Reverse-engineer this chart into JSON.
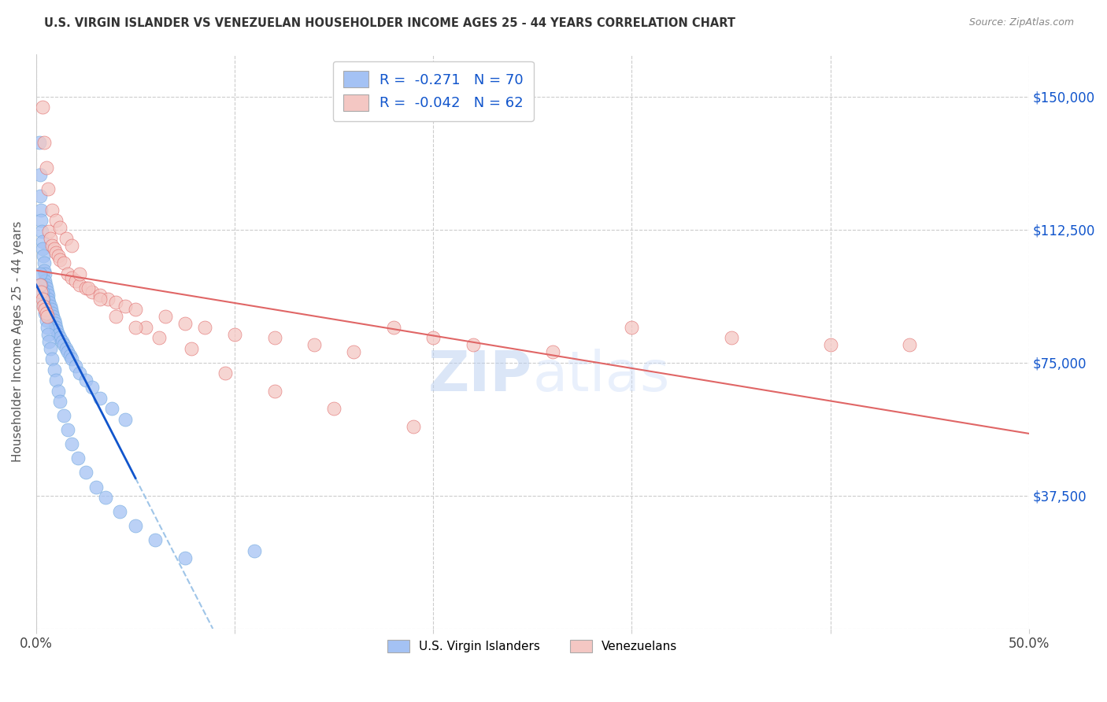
{
  "title": "U.S. VIRGIN ISLANDER VS VENEZUELAN HOUSEHOLDER INCOME AGES 25 - 44 YEARS CORRELATION CHART",
  "source": "Source: ZipAtlas.com",
  "ylabel": "Householder Income Ages 25 - 44 years",
  "x_ticks": [
    0.0,
    10.0,
    20.0,
    30.0,
    40.0,
    50.0
  ],
  "y_ticks": [
    0,
    37500,
    75000,
    112500,
    150000
  ],
  "y_tick_labels": [
    "",
    "$37,500",
    "$75,000",
    "$112,500",
    "$150,000"
  ],
  "xlim": [
    0.0,
    50.0
  ],
  "ylim": [
    0,
    162000
  ],
  "legend_labels": [
    "U.S. Virgin Islanders",
    "Venezuelans"
  ],
  "legend_r": [
    -0.271,
    -0.042
  ],
  "legend_n": [
    70,
    62
  ],
  "blue_color": "#a4c2f4",
  "pink_color": "#f4c7c3",
  "blue_edge_color": "#6fa8dc",
  "pink_edge_color": "#e06666",
  "blue_line_color": "#1155cc",
  "pink_line_color": "#e06666",
  "dashed_line_color": "#9fc5e8",
  "watermark_color": "#c9daf8",
  "blue_dots_x": [
    0.15,
    0.18,
    0.2,
    0.22,
    0.25,
    0.28,
    0.3,
    0.32,
    0.35,
    0.38,
    0.4,
    0.42,
    0.45,
    0.48,
    0.5,
    0.55,
    0.58,
    0.6,
    0.65,
    0.7,
    0.75,
    0.8,
    0.85,
    0.9,
    0.95,
    1.0,
    1.05,
    1.1,
    1.2,
    1.3,
    1.4,
    1.5,
    1.6,
    1.7,
    1.8,
    2.0,
    2.2,
    2.5,
    2.8,
    3.2,
    3.8,
    4.5,
    0.2,
    0.25,
    0.3,
    0.35,
    0.4,
    0.45,
    0.5,
    0.55,
    0.6,
    0.65,
    0.7,
    0.8,
    0.9,
    1.0,
    1.1,
    1.2,
    1.4,
    1.6,
    1.8,
    2.1,
    2.5,
    3.0,
    3.5,
    4.2,
    5.0,
    6.0,
    7.5,
    11.0
  ],
  "blue_dots_y": [
    137000,
    128000,
    122000,
    118000,
    115000,
    112000,
    109000,
    107000,
    105000,
    103000,
    101000,
    100000,
    98000,
    97000,
    96000,
    95000,
    94000,
    93000,
    92000,
    91000,
    90000,
    89000,
    88000,
    87000,
    86000,
    85000,
    84000,
    83000,
    82000,
    81000,
    80000,
    79000,
    78000,
    77000,
    76000,
    74000,
    72000,
    70000,
    68000,
    65000,
    62000,
    59000,
    100000,
    97000,
    95000,
    93000,
    91000,
    89000,
    87000,
    85000,
    83000,
    81000,
    79000,
    76000,
    73000,
    70000,
    67000,
    64000,
    60000,
    56000,
    52000,
    48000,
    44000,
    40000,
    37000,
    33000,
    29000,
    25000,
    20000,
    22000
  ],
  "pink_dots_x": [
    0.2,
    0.25,
    0.3,
    0.35,
    0.42,
    0.5,
    0.55,
    0.65,
    0.7,
    0.8,
    0.9,
    1.0,
    1.1,
    1.2,
    1.4,
    1.6,
    1.8,
    2.0,
    2.2,
    2.5,
    2.8,
    3.2,
    3.6,
    4.0,
    4.5,
    5.0,
    5.5,
    6.5,
    7.5,
    8.5,
    10.0,
    12.0,
    14.0,
    16.0,
    18.0,
    20.0,
    22.0,
    26.0,
    30.0,
    35.0,
    40.0,
    44.0,
    0.3,
    0.4,
    0.5,
    0.6,
    0.8,
    1.0,
    1.2,
    1.5,
    1.8,
    2.2,
    2.6,
    3.2,
    4.0,
    5.0,
    6.2,
    7.8,
    9.5,
    12.0,
    15.0,
    19.0
  ],
  "pink_dots_y": [
    97000,
    95000,
    93000,
    91000,
    90000,
    89000,
    88000,
    112000,
    110000,
    108000,
    107000,
    106000,
    105000,
    104000,
    103000,
    100000,
    99000,
    98000,
    97000,
    96000,
    95000,
    94000,
    93000,
    92000,
    91000,
    90000,
    85000,
    88000,
    86000,
    85000,
    83000,
    82000,
    80000,
    78000,
    85000,
    82000,
    80000,
    78000,
    85000,
    82000,
    80000,
    80000,
    147000,
    137000,
    130000,
    124000,
    118000,
    115000,
    113000,
    110000,
    108000,
    100000,
    96000,
    93000,
    88000,
    85000,
    82000,
    79000,
    72000,
    67000,
    62000,
    57000
  ]
}
